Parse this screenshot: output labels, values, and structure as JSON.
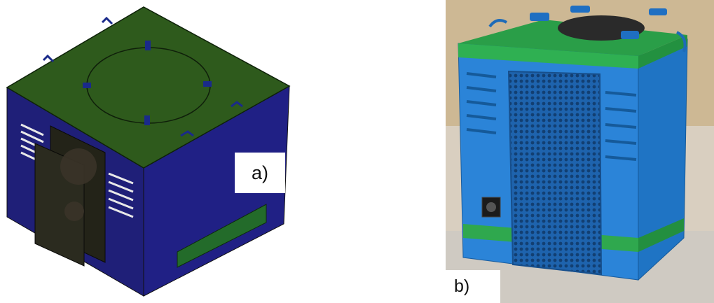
{
  "figure": {
    "panel_a": {
      "label": "a)",
      "description_color_body": "#1f1f7a",
      "description_color_top": "#2f5a1e",
      "description_color_panel": "#236b2a"
    },
    "panel_b": {
      "label": "b)",
      "description_color_body": "#1f7fd6",
      "description_color_top": "#2aa04a",
      "description_color_mesh": "#1d5fa8"
    }
  }
}
